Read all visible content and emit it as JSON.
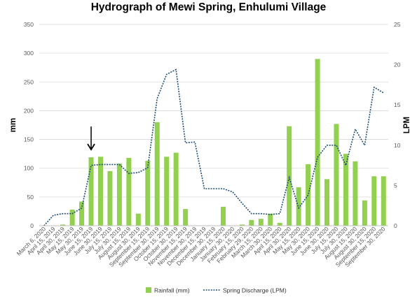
{
  "chart_data": {
    "type": "bar",
    "title": "Hydrograph of Mewi Spring, Enhulumi Village",
    "xlabel": "",
    "ylabel": "mm",
    "ylabel_right": "LPM",
    "ylim": [
      0,
      350
    ],
    "ylim_right": [
      0,
      25
    ],
    "yticks": [
      0,
      50,
      100,
      150,
      200,
      250,
      300,
      350
    ],
    "yticks_right": [
      0,
      5,
      10,
      15,
      20,
      25
    ],
    "grid": "horizontal",
    "legend_position": "bottom",
    "colors": {
      "bars": "#92D050",
      "line": "#1F4E79",
      "grid": "#D9D9D9"
    },
    "categories": [
      "March 6, 2020",
      "April 15, 2019",
      "April 30, 2019",
      "May 15, 2019",
      "May 30, 2019",
      "June 15, 2019",
      "June 30, 2019",
      "July 15, 2019",
      "July 30, 2019",
      "August 15, 2019",
      "August 30, 2019",
      "September 15, 2019",
      "September 30, 2019",
      "October 15, 2019",
      "October 30, 2019",
      "November 15, 2019",
      "November 30, 2019",
      "December 15, 2019",
      "December 30, 2019",
      "January 15, 2020",
      "January 30, 2020",
      "February 15, 2020",
      "February 29, 2020",
      "March 15, 2020",
      "March 30, 2020",
      "April 15, 2020",
      "April 30, 2020",
      "May 15, 2020",
      "May 30, 2020",
      "June 15, 2020",
      "June 30, 2020",
      "July 15, 2020",
      "July 30, 2020",
      "August 15, 2020",
      "August 30, 2020",
      "September 15, 2020",
      "September 30, 2020"
    ],
    "series": [
      {
        "name": "Rainfall (mm)",
        "type": "bar",
        "axis": "left",
        "values": [
          0,
          0,
          2,
          28,
          42,
          119,
          120,
          95,
          108,
          118,
          21,
          113,
          180,
          120,
          127,
          29,
          0,
          0,
          0,
          33,
          0,
          2,
          10,
          12,
          21,
          5,
          173,
          67,
          107,
          290,
          81,
          177,
          125,
          112,
          44,
          86,
          86
        ]
      },
      {
        "name": "Spring Discharge (LPM)",
        "type": "line",
        "axis": "right",
        "values": [
          0,
          1.3,
          1.5,
          1.5,
          2.2,
          7.5,
          7.6,
          7.6,
          7.6,
          6.5,
          6.6,
          7.2,
          15.8,
          18.8,
          19.4,
          10.3,
          10.4,
          4.6,
          4.6,
          4.6,
          4.2,
          2.8,
          1.5,
          1.5,
          1.4,
          1.5,
          6.0,
          2.2,
          3.8,
          8.5,
          10.0,
          10.0,
          7.5,
          12.0,
          10.0,
          17.2,
          16.5
        ]
      }
    ],
    "annotation": {
      "type": "arrow",
      "category": "June 15, 2019"
    }
  }
}
